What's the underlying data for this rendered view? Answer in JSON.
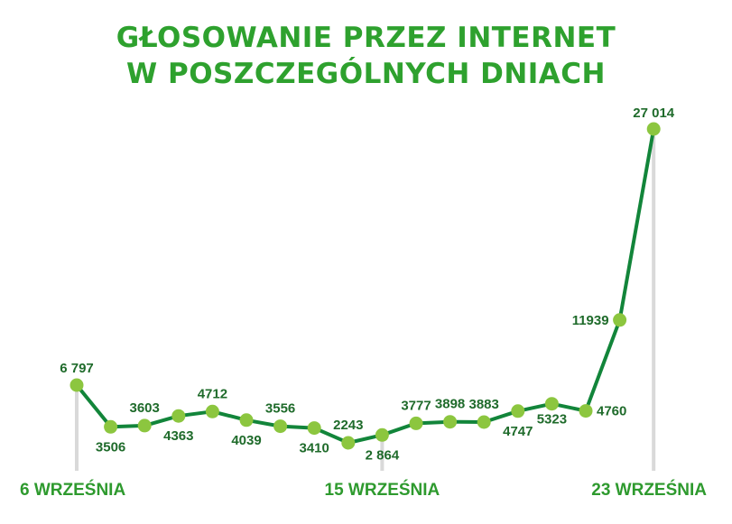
{
  "chart_data": {
    "type": "line",
    "title": [
      "GŁOSOWANIE PRZEZ INTERNET",
      "W POSZCZEGÓLNYCH DNIACH"
    ],
    "xlabel": "",
    "ylabel": "",
    "x": [
      6,
      7,
      8,
      9,
      10,
      11,
      12,
      13,
      14,
      15,
      16,
      17,
      18,
      19,
      20,
      21,
      22,
      23
    ],
    "values": [
      6797,
      3506,
      3603,
      4363,
      4712,
      4039,
      3556,
      3410,
      2243,
      2864,
      3777,
      3898,
      3883,
      4747,
      5323,
      4760,
      11939,
      27014
    ],
    "value_labels": [
      "6 797",
      "3506",
      "3603",
      "4363",
      "4712",
      "4039",
      "3556",
      "3410",
      "2243",
      "2 864",
      "3777",
      "3898",
      "3883",
      "4747",
      "5323",
      "4760",
      "11939",
      "27 014"
    ],
    "ticks": [
      {
        "x": 6,
        "label": "6 WRZEŚNIA"
      },
      {
        "x": 15,
        "label": "15 WRZEŚNIA"
      },
      {
        "x": 23,
        "label": "23 WRZEŚNIA"
      }
    ],
    "grid": false,
    "legend": "none",
    "colors": {
      "line": "#12853a",
      "point": "#8cc63f",
      "title": "#2ea12e",
      "label": "#1f6b2b",
      "tick": "#2e9a2e",
      "tick_line": "#d9d9d9"
    }
  }
}
